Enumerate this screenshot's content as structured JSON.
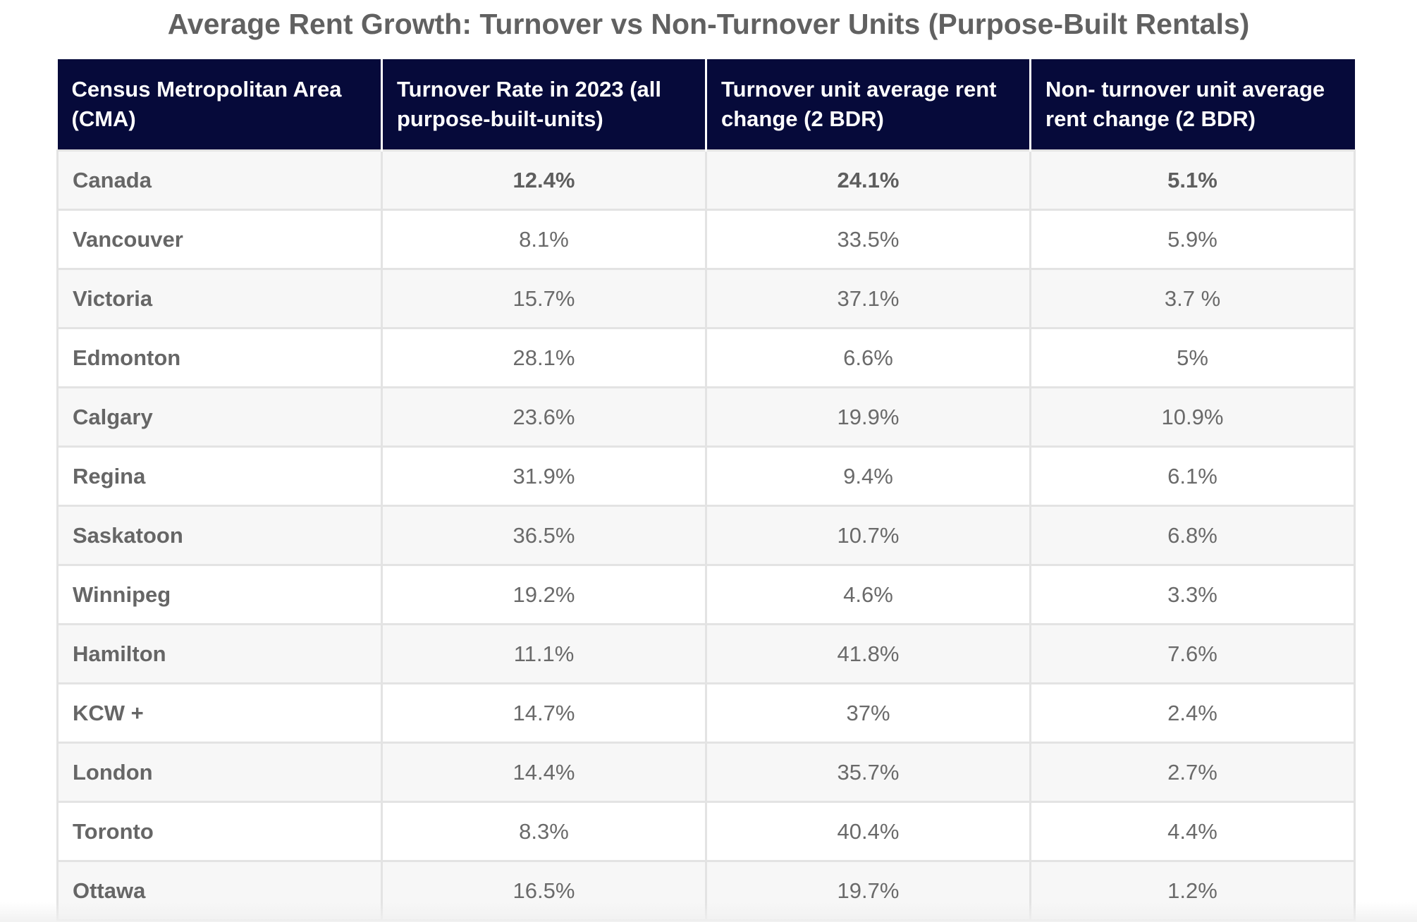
{
  "title": "Average Rent Growth: Turnover vs Non-Turnover Units (Purpose-Built Rentals)",
  "table": {
    "headers": [
      "Census Metropolitan Area (CMA)",
      "Turnover Rate in 2023 (all purpose-built-units)",
      "Turnover unit average rent change (2 BDR)",
      "Non- turnover unit average rent change (2 BDR)"
    ],
    "rows": [
      {
        "cma": "Canada",
        "turnover_rate": "12.4%",
        "turnover_change": "24.1%",
        "non_turnover_change": "5.1%"
      },
      {
        "cma": "Vancouver",
        "turnover_rate": "8.1%",
        "turnover_change": "33.5%",
        "non_turnover_change": "5.9%"
      },
      {
        "cma": "Victoria",
        "turnover_rate": "15.7%",
        "turnover_change": "37.1%",
        "non_turnover_change": "3.7 %"
      },
      {
        "cma": "Edmonton",
        "turnover_rate": "28.1%",
        "turnover_change": "6.6%",
        "non_turnover_change": "5%"
      },
      {
        "cma": "Calgary",
        "turnover_rate": "23.6%",
        "turnover_change": "19.9%",
        "non_turnover_change": "10.9%"
      },
      {
        "cma": "Regina",
        "turnover_rate": "31.9%",
        "turnover_change": "9.4%",
        "non_turnover_change": "6.1%"
      },
      {
        "cma": "Saskatoon",
        "turnover_rate": "36.5%",
        "turnover_change": "10.7%",
        "non_turnover_change": "6.8%"
      },
      {
        "cma": "Winnipeg",
        "turnover_rate": "19.2%",
        "turnover_change": "4.6%",
        "non_turnover_change": "3.3%"
      },
      {
        "cma": "Hamilton",
        "turnover_rate": "11.1%",
        "turnover_change": "41.8%",
        "non_turnover_change": "7.6%"
      },
      {
        "cma": "KCW +",
        "turnover_rate": "14.7%",
        "turnover_change": "37%",
        "non_turnover_change": "2.4%"
      },
      {
        "cma": "London",
        "turnover_rate": "14.4%",
        "turnover_change": "35.7%",
        "non_turnover_change": "2.7%"
      },
      {
        "cma": "Toronto",
        "turnover_rate": "8.3%",
        "turnover_change": "40.4%",
        "non_turnover_change": "4.4%"
      },
      {
        "cma": "Ottawa",
        "turnover_rate": "16.5%",
        "turnover_change": "19.7%",
        "non_turnover_change": "1.2%"
      }
    ]
  },
  "colors": {
    "header_bg": "#060a3a",
    "header_text": "#ffffff",
    "row_alt_bg": "#f7f7f7",
    "border": "#e3e3e3"
  }
}
